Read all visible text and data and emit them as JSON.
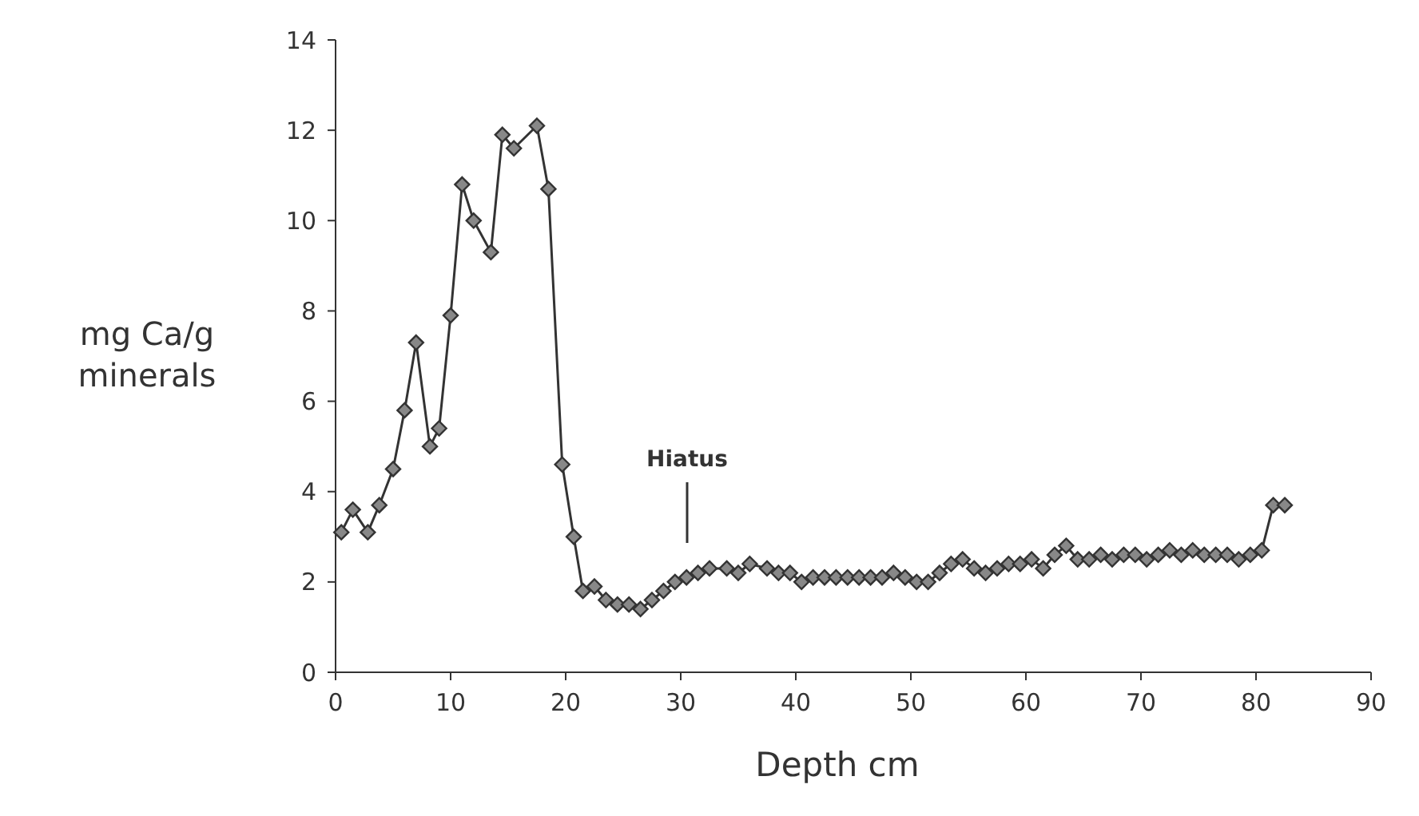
{
  "chart_data": {
    "type": "line",
    "xlabel": "Depth cm",
    "ylabel": "mg Ca/g\nminerals",
    "xlim": [
      0,
      90
    ],
    "ylim": [
      0,
      14
    ],
    "xticks": [
      0,
      10,
      20,
      30,
      40,
      50,
      60,
      70,
      80,
      90
    ],
    "yticks": [
      0,
      2,
      4,
      6,
      8,
      10,
      12,
      14
    ],
    "grid": false,
    "marker": "diamond",
    "line_style": "solid",
    "annotations": [
      "Hiatus"
    ],
    "series": [
      {
        "color": "#333333",
        "x": [
          0.5,
          1.5,
          2.8,
          3.8,
          5,
          6,
          7,
          8.2,
          9,
          10,
          11,
          12,
          13.5,
          14.5,
          15.5,
          17.5,
          18.5,
          19.7,
          20.7,
          21.5,
          22.5,
          23.5,
          24.5,
          25.5,
          26.5,
          27.5,
          28.5,
          29.5,
          30.5,
          31.5,
          32.5,
          34,
          35,
          36,
          37.5,
          38.5,
          39.5,
          40.5,
          41.5,
          42.5,
          43.5,
          44.5,
          45.5,
          46.5,
          47.5,
          48.5,
          49.5,
          50.5,
          51.5,
          52.5,
          53.5,
          54.5,
          55.5,
          56.5,
          57.5,
          58.5,
          59.5,
          60.5,
          61.5,
          62.5,
          63.5,
          64.5,
          65.5,
          66.5,
          67.5,
          68.5,
          69.5,
          70.5,
          71.5,
          72.5,
          73.5,
          74.5,
          75.5,
          76.5,
          77.5,
          78.5,
          79.5,
          80.5,
          81.5,
          82.5
        ],
        "values": [
          3.1,
          3.6,
          3.1,
          3.7,
          4.5,
          5.8,
          7.3,
          5.0,
          5.4,
          7.9,
          10.8,
          10.0,
          9.3,
          11.9,
          11.6,
          12.1,
          10.7,
          4.6,
          3.0,
          1.8,
          1.9,
          1.6,
          1.5,
          1.5,
          1.4,
          1.6,
          1.8,
          2.0,
          2.1,
          2.2,
          2.3,
          2.3,
          2.2,
          2.4,
          2.3,
          2.2,
          2.2,
          2.0,
          2.1,
          2.1,
          2.1,
          2.1,
          2.1,
          2.1,
          2.1,
          2.2,
          2.1,
          2.0,
          2.0,
          2.2,
          2.4,
          2.5,
          2.3,
          2.2,
          2.3,
          2.4,
          2.4,
          2.5,
          2.3,
          2.6,
          2.8,
          2.5,
          2.5,
          2.6,
          2.5,
          2.6,
          2.6,
          2.5,
          2.6,
          2.7,
          2.6,
          2.7,
          2.6,
          2.6,
          2.6,
          2.5,
          2.6,
          2.7,
          3.7,
          3.7
        ]
      }
    ]
  }
}
